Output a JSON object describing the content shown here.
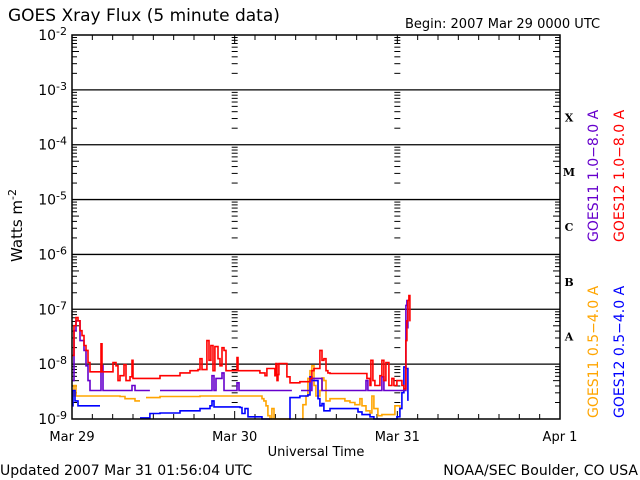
{
  "chart_data": {
    "type": "line",
    "title": "GOES Xray Flux (5 minute data)",
    "begin_label": "Begin:  2007 Mar 29 0000 UTC",
    "xlabel": "Universal Time",
    "ylabel": "Watts m",
    "ylabel_sup": "-2",
    "x_unit": "hours since 2007 Mar 29 0000 UTC",
    "xlim": [
      0,
      72
    ],
    "ylim_log10": [
      -9,
      -2
    ],
    "y_scale": "log",
    "x_ticks": [
      {
        "value": 0,
        "label": "Mar 29"
      },
      {
        "value": 24,
        "label": "Mar 30"
      },
      {
        "value": 48,
        "label": "Mar 31"
      },
      {
        "value": 72,
        "label": "Apr 1"
      }
    ],
    "y_ticks": [
      {
        "exp": -2,
        "base": "10",
        "sup": "-2"
      },
      {
        "exp": -3,
        "base": "10",
        "sup": "-3"
      },
      {
        "exp": -4,
        "base": "10",
        "sup": "-4"
      },
      {
        "exp": -5,
        "base": "10",
        "sup": "-5"
      },
      {
        "exp": -6,
        "base": "10",
        "sup": "-6"
      },
      {
        "exp": -7,
        "base": "10",
        "sup": "-7"
      },
      {
        "exp": -8,
        "base": "10",
        "sup": "-8"
      },
      {
        "exp": -9,
        "base": "10",
        "sup": "-9"
      }
    ],
    "flare_classes": [
      {
        "label": "X",
        "exp": -3.5
      },
      {
        "label": "M",
        "exp": -4.5
      },
      {
        "label": "C",
        "exp": -5.5
      },
      {
        "label": "B",
        "exp": -6.5
      },
      {
        "label": "A",
        "exp": -7.5
      }
    ],
    "grid": "horizontal lines at each decade",
    "series": [
      {
        "name": "GOES11 0.5-4.0 A",
        "color": "#ffa500",
        "legend_order": 0,
        "points_log10": [
          [
            0,
            -8.58
          ],
          [
            0.3,
            -8.39
          ],
          [
            0.59,
            -8.58
          ],
          [
            4.13,
            -8.58
          ],
          [
            7.08,
            -8.59
          ],
          [
            7.82,
            -8.63
          ],
          [
            8.56,
            -8.63
          ],
          [
            9.29,
            -8.67
          ],
          [
            10.03,
            -8.67
          ],
          null,
          [
            10.92,
            -8.61
          ],
          [
            12.98,
            -8.59
          ],
          [
            18.88,
            -8.58
          ],
          [
            23.31,
            -8.58
          ],
          [
            27.73,
            -8.58
          ],
          [
            28.03,
            -8.63
          ],
          [
            28.32,
            -8.67
          ],
          [
            28.62,
            -8.76
          ],
          [
            28.91,
            -8.94
          ],
          [
            29.21,
            -9.0
          ],
          [
            29.5,
            -8.81
          ],
          [
            29.8,
            -9.0
          ],
          [
            32.16,
            -9.0
          ],
          null,
          [
            33.93,
            -9.0
          ],
          [
            34.07,
            -8.74
          ],
          [
            34.52,
            -8.58
          ],
          [
            34.81,
            -8.26
          ],
          [
            35.11,
            -8.12
          ],
          [
            35.4,
            -8.03
          ],
          [
            35.7,
            -8.39
          ],
          [
            35.99,
            -8.58
          ],
          [
            36.58,
            -8.48
          ],
          [
            36.88,
            -8.25
          ],
          [
            37.17,
            -8.3
          ],
          [
            37.47,
            -8.67
          ],
          [
            38.06,
            -8.63
          ],
          [
            40.27,
            -8.67
          ],
          [
            41.01,
            -8.7
          ],
          [
            41.74,
            -8.74
          ],
          [
            42.48,
            -8.63
          ],
          [
            42.78,
            -8.76
          ],
          [
            43.37,
            -8.85
          ],
          [
            43.96,
            -8.89
          ],
          [
            44.25,
            -8.58
          ],
          [
            44.55,
            -8.81
          ],
          [
            45.14,
            -8.94
          ],
          [
            45.73,
            -8.92
          ],
          [
            47.64,
            -8.76
          ],
          [
            48.38,
            -8.81
          ]
        ]
      },
      {
        "name": "GOES12 0.5-4.0 A",
        "color": "#0000ff",
        "legend_order": 1,
        "points_log10": [
          [
            0,
            -8.76
          ],
          [
            0.15,
            -8.48
          ],
          [
            0.44,
            -8.67
          ],
          [
            0.89,
            -8.76
          ],
          [
            2.66,
            -8.76
          ],
          [
            4.13,
            -8.76
          ],
          null,
          [
            10.03,
            -8.98
          ],
          [
            11.5,
            -8.9
          ],
          [
            12.98,
            -8.89
          ],
          [
            15.93,
            -8.85
          ],
          [
            18.88,
            -8.81
          ],
          [
            20.36,
            -8.76
          ],
          [
            20.65,
            -8.67
          ],
          [
            20.95,
            -8.78
          ],
          [
            23.31,
            -8.78
          ],
          [
            24.78,
            -8.79
          ],
          [
            25.08,
            -8.9
          ],
          [
            25.52,
            -8.81
          ],
          [
            25.96,
            -8.96
          ],
          [
            27.73,
            -8.96
          ],
          [
            28.03,
            -9.0
          ],
          [
            29.21,
            -9.0
          ],
          null,
          [
            32.01,
            -9.0
          ],
          [
            32.16,
            -8.61
          ],
          [
            33.34,
            -8.61
          ],
          [
            33.63,
            -8.58
          ],
          [
            34.81,
            -8.56
          ],
          [
            35.11,
            -8.23
          ],
          [
            35.4,
            -8.3
          ],
          [
            35.99,
            -8.3
          ],
          [
            36.29,
            -8.63
          ],
          [
            36.58,
            -8.76
          ],
          [
            36.88,
            -8.72
          ],
          [
            37.17,
            -8.85
          ],
          [
            38.06,
            -8.81
          ],
          [
            41.01,
            -8.81
          ],
          [
            41.89,
            -8.81
          ],
          [
            42.19,
            -8.87
          ],
          [
            42.78,
            -8.92
          ],
          [
            43.37,
            -8.92
          ],
          [
            43.96,
            -8.96
          ],
          [
            44.55,
            -9.0
          ],
          [
            47.64,
            -9.0
          ],
          [
            47.94,
            -8.96
          ],
          [
            48.38,
            -8.81
          ],
          [
            48.68,
            -8.52
          ],
          [
            48.97,
            -8.05
          ],
          [
            49.27,
            -8.08
          ],
          [
            49.56,
            -8.67
          ]
        ]
      },
      {
        "name": "GOES11 1.0-8.0 A",
        "color": "#6600cc",
        "legend_order": 2,
        "points_log10": [
          [
            0,
            -8.3
          ],
          [
            0.3,
            -7.39
          ],
          [
            0.59,
            -7.21
          ],
          [
            1.18,
            -7.57
          ],
          [
            1.77,
            -7.75
          ],
          [
            2.07,
            -8.03
          ],
          [
            2.36,
            -8.3
          ],
          [
            2.66,
            -8.48
          ],
          [
            4.13,
            -8.48
          ],
          [
            4.28,
            -8.03
          ],
          [
            4.57,
            -8.48
          ],
          [
            8.56,
            -8.48
          ],
          [
            8.85,
            -8.39
          ],
          [
            9.29,
            -8.48
          ],
          [
            11.5,
            -8.48
          ],
          null,
          [
            12.98,
            -8.48
          ],
          [
            20.36,
            -8.48
          ],
          [
            20.65,
            -8.21
          ],
          [
            20.95,
            -8.48
          ],
          [
            21.24,
            -8.26
          ],
          [
            21.83,
            -8.26
          ],
          [
            22.13,
            -8.16
          ],
          [
            22.42,
            -8.48
          ],
          [
            24.04,
            -8.48
          ],
          [
            24.34,
            -8.34
          ],
          [
            24.64,
            -8.48
          ],
          [
            32.45,
            -8.48
          ],
          null,
          [
            33.78,
            -8.48
          ],
          [
            35.11,
            -8.48
          ],
          [
            35.4,
            -8.26
          ],
          [
            36.58,
            -8.26
          ],
          [
            36.88,
            -8.48
          ],
          [
            43.07,
            -8.48
          ],
          [
            43.37,
            -8.3
          ],
          [
            43.66,
            -8.48
          ],
          [
            45.43,
            -8.48
          ],
          [
            45.73,
            -8.23
          ],
          [
            46.02,
            -8.48
          ],
          [
            47.64,
            -8.48
          ],
          [
            49.27,
            -6.93
          ],
          [
            49.41,
            -6.84
          ],
          [
            49.56,
            -7.35
          ]
        ]
      },
      {
        "name": "GOES12 1.0-8.0 A",
        "color": "#ff0000",
        "legend_order": 3,
        "points_log10": [
          [
            0,
            -7.84
          ],
          [
            0.3,
            -7.3
          ],
          [
            0.59,
            -7.15
          ],
          [
            0.89,
            -7.21
          ],
          [
            1.18,
            -7.39
          ],
          [
            1.48,
            -7.48
          ],
          [
            1.77,
            -7.66
          ],
          [
            2.07,
            -7.75
          ],
          [
            2.36,
            -7.97
          ],
          [
            2.66,
            -8.14
          ],
          [
            4.13,
            -8.14
          ],
          [
            4.28,
            -7.63
          ],
          [
            4.43,
            -8.14
          ],
          [
            5.75,
            -8.14
          ],
          [
            6.05,
            -7.97
          ],
          [
            6.49,
            -8.03
          ],
          [
            6.79,
            -8.3
          ],
          [
            7.08,
            -8.21
          ],
          [
            7.67,
            -8.01
          ],
          [
            7.97,
            -8.3
          ],
          [
            8.56,
            -8.23
          ],
          [
            8.85,
            -7.93
          ],
          [
            9.0,
            -8.26
          ],
          [
            10.03,
            -8.26
          ],
          [
            12.98,
            -8.21
          ],
          [
            15.93,
            -8.16
          ],
          [
            17.41,
            -8.12
          ],
          [
            18.59,
            -8.1
          ],
          [
            18.88,
            -7.9
          ],
          [
            19.18,
            -8.1
          ],
          [
            19.62,
            -8.1
          ],
          [
            19.91,
            -7.57
          ],
          [
            20.21,
            -7.93
          ],
          [
            20.5,
            -7.66
          ],
          [
            20.8,
            -8.12
          ],
          [
            21.09,
            -7.68
          ],
          [
            21.54,
            -7.9
          ],
          [
            21.83,
            -8.03
          ],
          [
            22.13,
            -7.7
          ],
          [
            22.42,
            -7.75
          ],
          [
            22.72,
            -8.12
          ],
          [
            24.04,
            -8.12
          ],
          [
            24.34,
            -7.88
          ],
          [
            24.49,
            -8.12
          ],
          [
            24.78,
            -8.12
          ],
          [
            27.73,
            -8.16
          ],
          [
            28.47,
            -8.21
          ],
          [
            28.76,
            -8.08
          ],
          [
            29.94,
            -8.21
          ],
          [
            30.09,
            -7.99
          ],
          [
            30.24,
            -8.3
          ],
          [
            30.39,
            -8.19
          ],
          [
            30.53,
            -7.99
          ],
          [
            31.42,
            -7.99
          ],
          [
            31.71,
            -8.23
          ],
          [
            32.16,
            -8.34
          ],
          [
            33.63,
            -8.32
          ],
          [
            35.11,
            -8.26
          ],
          [
            35.4,
            -8.12
          ],
          [
            35.7,
            -8.08
          ],
          [
            36.58,
            -7.75
          ],
          [
            36.88,
            -7.93
          ],
          [
            37.17,
            -7.9
          ],
          [
            37.47,
            -8.12
          ],
          [
            37.76,
            -8.16
          ],
          [
            38.06,
            -8.17
          ],
          [
            41.01,
            -8.17
          ],
          [
            43.22,
            -8.17
          ],
          [
            43.51,
            -8.26
          ],
          [
            43.96,
            -8.39
          ],
          [
            44.1,
            -7.93
          ],
          [
            44.4,
            -8.3
          ],
          [
            44.69,
            -8.39
          ],
          [
            45.43,
            -8.21
          ],
          [
            45.73,
            -7.93
          ],
          [
            46.02,
            -8.3
          ],
          [
            46.32,
            -7.97
          ],
          [
            46.76,
            -8.39
          ],
          [
            47.2,
            -8.26
          ],
          [
            47.5,
            -8.39
          ],
          [
            47.94,
            -8.3
          ],
          [
            48.23,
            -8.3
          ],
          [
            48.68,
            -8.39
          ],
          [
            48.97,
            -8.45
          ],
          [
            49.27,
            -7.57
          ],
          [
            49.41,
            -7.21
          ],
          [
            49.56,
            -6.84
          ],
          [
            49.71,
            -6.75
          ],
          [
            49.86,
            -7.22
          ]
        ]
      }
    ]
  },
  "footer": {
    "updated": "Updated 2007 Mar 31 01:56:04 UTC",
    "credit": "NOAA/SEC Boulder, CO USA"
  }
}
